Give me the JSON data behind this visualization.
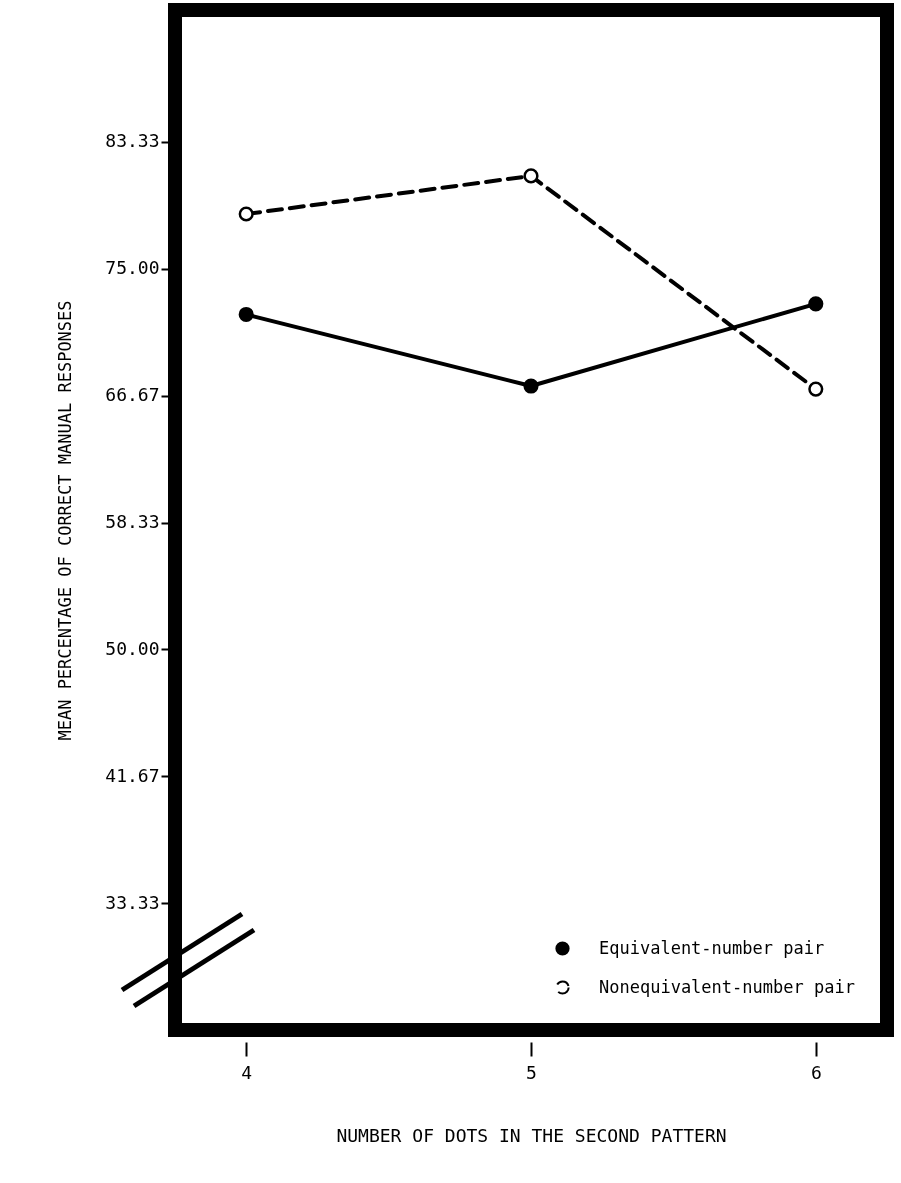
{
  "chart_data": {
    "type": "line",
    "xlabel": "NUMBER OF DOTS IN THE SECOND PATTERN",
    "ylabel": "MEAN PERCENTAGE OF CORRECT MANUAL RESPONSES",
    "categories": [
      "4",
      "5",
      "6"
    ],
    "series": [
      {
        "name": "Equivalent-number pair",
        "color": "#000000",
        "values": [
          72.0,
          67.3,
          72.7
        ],
        "line_style": "solid",
        "marker": "circle"
      },
      {
        "name": "Nonequivalent-number pair",
        "color": "#000000",
        "values": [
          78.6,
          81.1,
          67.1
        ],
        "line_style": "dashed",
        "marker": "circle"
      }
    ],
    "ylim": [
      25,
      92
    ],
    "yticks": [
      33.33,
      41.67,
      {
        "value": 50,
        "label": "50.00"
      },
      58.33,
      66.67,
      {
        "value": 75,
        "label": "75.00"
      },
      83.33
    ],
    "grid": false,
    "legend": "bottom right"
  }
}
